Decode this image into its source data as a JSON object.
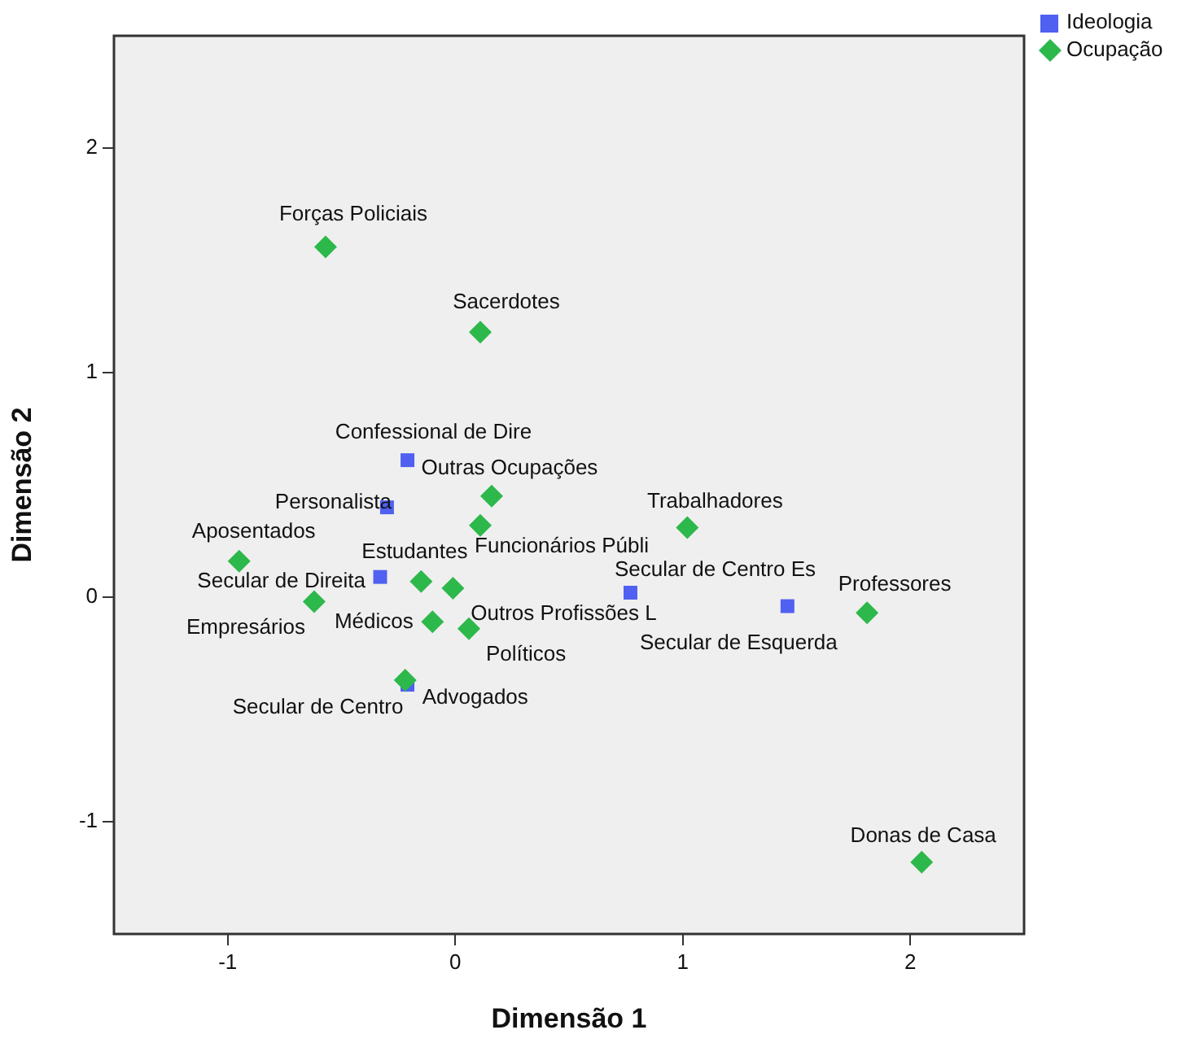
{
  "chart_data": {
    "type": "scatter",
    "xlabel": "Dimensão 1",
    "ylabel": "Dimensão 2",
    "xlim": [
      -1.5,
      2.5
    ],
    "xticks": [
      -1,
      0,
      1,
      2
    ],
    "ylim": [
      -1.5,
      2.5
    ],
    "yticks": [
      -1,
      0,
      1,
      2
    ],
    "grid": false,
    "legend": "top right",
    "series": [
      {
        "name": "Ideologia",
        "color": "#5060f0",
        "marker": "square",
        "x": [
          -0.21,
          -0.3,
          -0.33,
          0.77,
          1.46,
          -0.21
        ],
        "values": [
          0.61,
          0.4,
          0.09,
          0.02,
          -0.04,
          -0.39
        ]
      },
      {
        "name": "Ocupação",
        "color": "#2db84b",
        "marker": "diamond",
        "x": [
          -0.57,
          0.11,
          0.16,
          0.11,
          1.02,
          -0.95,
          -0.62,
          -0.15,
          -0.01,
          -0.1,
          0.06,
          -0.22,
          1.81,
          2.05
        ],
        "values": [
          1.56,
          1.18,
          0.45,
          0.32,
          0.31,
          0.16,
          -0.02,
          0.07,
          0.04,
          -0.11,
          -0.14,
          -0.37,
          -0.07,
          -1.18
        ]
      }
    ],
    "annotations": [
      {
        "text": "Confessional de Dire",
        "x": -0.21,
        "y": 0.61
      },
      {
        "text": "Personalista",
        "x": -0.3,
        "y": 0.4
      },
      {
        "text": "Secular de Direita",
        "x": -0.33,
        "y": 0.09
      },
      {
        "text": "Secular de Centro Es",
        "x": 0.77,
        "y": 0.02
      },
      {
        "text": "Secular de Esquerda",
        "x": 1.46,
        "y": -0.04
      },
      {
        "text": "Secular de Centro",
        "x": -0.21,
        "y": -0.39
      },
      {
        "text": "Forças Policiais",
        "x": -0.57,
        "y": 1.56
      },
      {
        "text": "Sacerdotes",
        "x": 0.11,
        "y": 1.18
      },
      {
        "text": "Outras Ocupações",
        "x": 0.16,
        "y": 0.45
      },
      {
        "text": "Funcionários Públi",
        "x": 0.11,
        "y": 0.32
      },
      {
        "text": "Trabalhadores",
        "x": 1.02,
        "y": 0.31
      },
      {
        "text": "Aposentados",
        "x": -0.95,
        "y": 0.16
      },
      {
        "text": "Empresários",
        "x": -0.62,
        "y": -0.02
      },
      {
        "text": "Estudantes",
        "x": -0.15,
        "y": 0.07
      },
      {
        "text": "Outros Profissões L",
        "x": -0.01,
        "y": 0.04
      },
      {
        "text": "Médicos",
        "x": -0.1,
        "y": -0.11
      },
      {
        "text": "Políticos",
        "x": 0.06,
        "y": -0.14
      },
      {
        "text": "Advogados",
        "x": -0.22,
        "y": -0.37
      },
      {
        "text": "Professores",
        "x": 1.81,
        "y": -0.07
      },
      {
        "text": "Donas de Casa",
        "x": 2.05,
        "y": -1.18
      }
    ]
  }
}
